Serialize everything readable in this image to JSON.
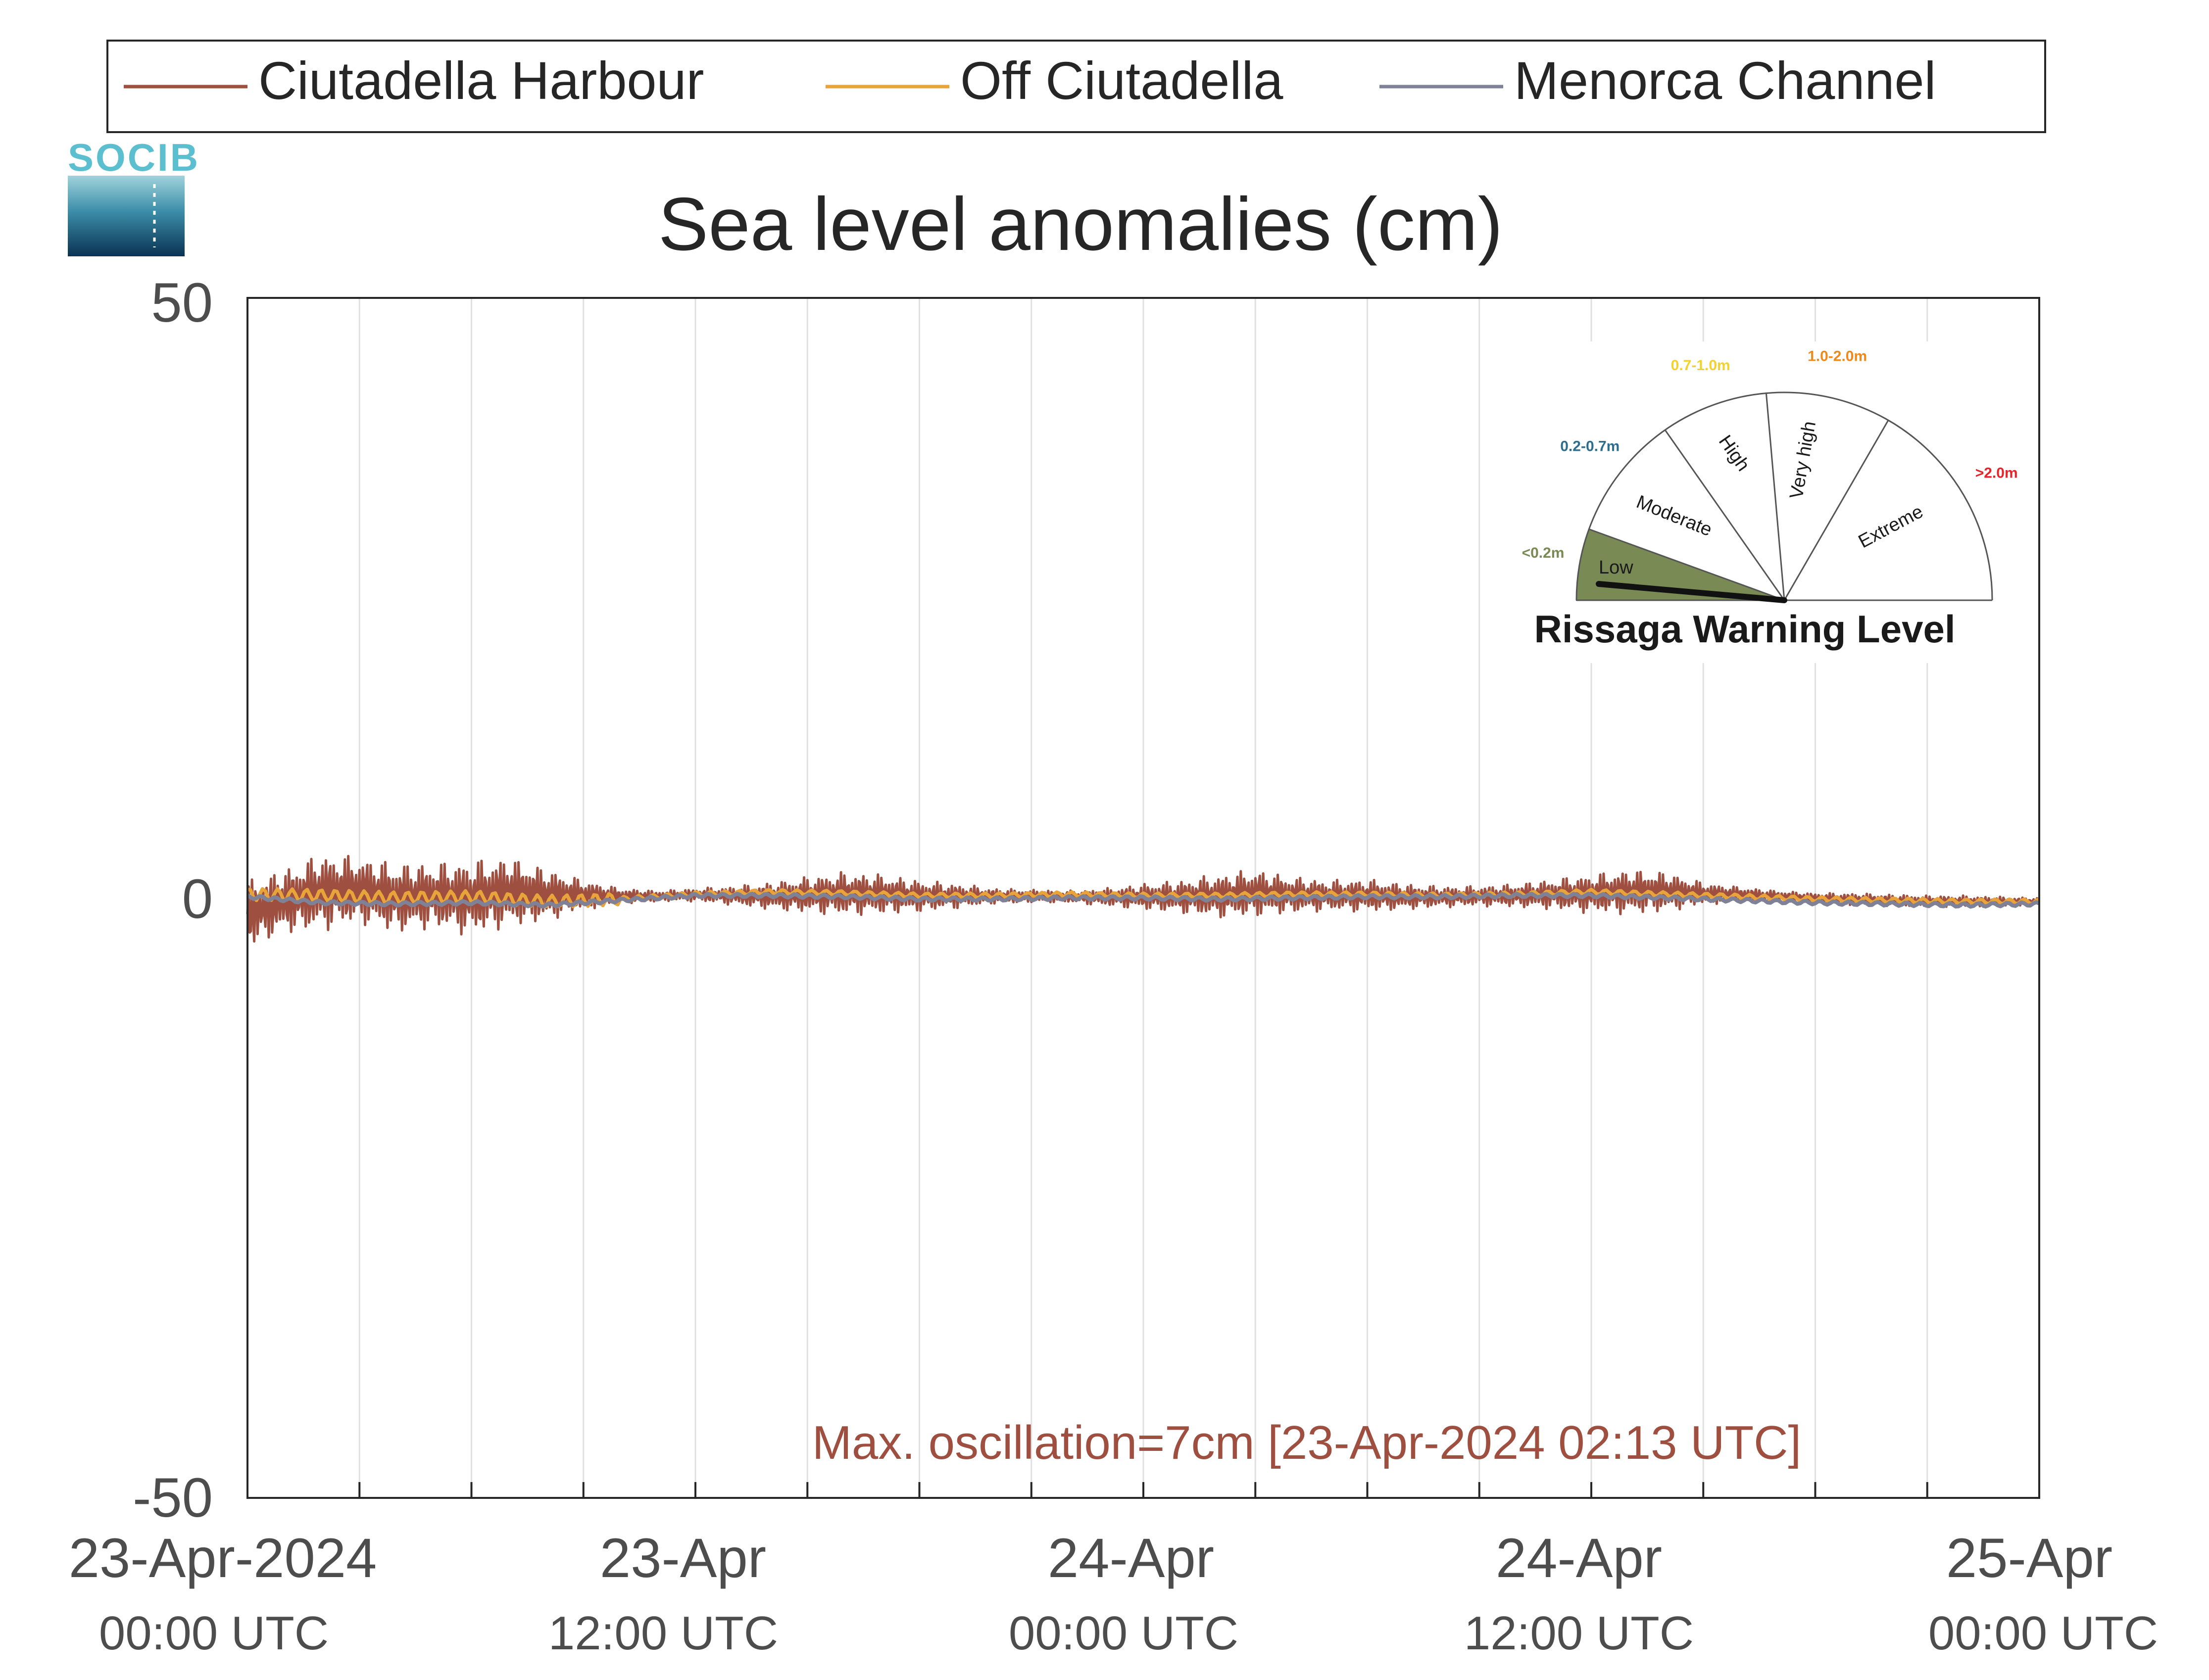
{
  "chart_data": {
    "type": "line",
    "title": "Sea level anomalies (cm)",
    "xlabel": "",
    "ylabel": "",
    "ylim": [
      -50,
      50
    ],
    "xlim": [
      "2024-04-23T00:00Z",
      "2024-04-25T00:00Z"
    ],
    "y_ticks": [
      "50",
      "0",
      "-50"
    ],
    "x_ticks": [
      {
        "line1": "23-Apr-2024",
        "line2": "00:00 UTC"
      },
      {
        "line1": "23-Apr",
        "line2": "12:00 UTC"
      },
      {
        "line1": "24-Apr",
        "line2": "00:00 UTC"
      },
      {
        "line1": "24-Apr",
        "line2": "12:00 UTC"
      },
      {
        "line1": "25-Apr",
        "line2": "00:00 UTC"
      }
    ],
    "grid": "vertical lines every 3 hours",
    "legend": "top, horizontal, outside plot area",
    "colors": {
      "harbour": "#9e4f3f",
      "off": "#e8a33a",
      "channel": "#7f8296",
      "axes": "#262626",
      "tick_text": "#4d4d4d",
      "grid": "#e0e0e0"
    },
    "series": [
      {
        "name": "Ciutadella Harbour",
        "color": "#9e4f3f",
        "x_hours": [
          0,
          1,
          2,
          3,
          4,
          5,
          6,
          7,
          8,
          9,
          10,
          11,
          12,
          13,
          14,
          15,
          16,
          17,
          18,
          19,
          20,
          21,
          22,
          23,
          24,
          25,
          26,
          27,
          28,
          29,
          30,
          31,
          32,
          33,
          34,
          35,
          36,
          37,
          38,
          39,
          40,
          41,
          42,
          43,
          44,
          45,
          46,
          47,
          48
        ],
        "y_max": [
          1.5,
          2.5,
          3.8,
          3.5,
          3.0,
          3.0,
          3.2,
          3.5,
          2.5,
          1.5,
          0.8,
          0.6,
          0.8,
          1.0,
          1.3,
          1.8,
          2.2,
          2.0,
          1.5,
          1.2,
          0.8,
          0.7,
          0.6,
          0.8,
          1.2,
          1.5,
          2.0,
          2.4,
          1.8,
          1.5,
          1.6,
          1.2,
          1.0,
          1.0,
          1.2,
          1.6,
          2.0,
          2.4,
          2.2,
          1.3,
          0.9,
          0.6,
          0.4,
          0.4,
          0.3,
          0.2,
          0.2,
          0.1,
          0.0
        ],
        "y_min": [
          -4.2,
          -3.0,
          -2.8,
          -2.2,
          -3.0,
          -2.6,
          -3.2,
          -2.5,
          -2.0,
          -1.0,
          -0.5,
          -0.3,
          -0.3,
          -0.6,
          -1.0,
          -1.3,
          -1.5,
          -1.4,
          -1.2,
          -0.9,
          -0.5,
          -0.4,
          -0.4,
          -0.7,
          -1.0,
          -1.3,
          -1.7,
          -1.6,
          -1.3,
          -1.1,
          -1.2,
          -1.0,
          -0.8,
          -0.7,
          -0.8,
          -1.0,
          -1.3,
          -1.4,
          -1.2,
          -0.6,
          -0.3,
          -0.3,
          -0.4,
          -0.6,
          -0.7,
          -0.7,
          -0.8,
          -0.7,
          -0.6
        ]
      },
      {
        "name": "Off Ciutadella",
        "color": "#e8a33a",
        "x_hours": [
          0,
          2,
          4,
          6,
          8,
          10,
          12,
          14,
          16,
          18,
          20,
          22,
          24,
          26,
          28,
          30,
          32,
          34,
          36,
          38,
          40,
          42,
          44,
          46,
          48
        ],
        "y": [
          0.3,
          0.2,
          0.0,
          0.1,
          -0.3,
          -0.1,
          0.3,
          0.5,
          0.4,
          0.2,
          0.2,
          0.3,
          0.2,
          0.2,
          0.3,
          0.3,
          0.2,
          0.3,
          0.5,
          0.3,
          0.1,
          -0.1,
          -0.2,
          -0.3,
          -0.3
        ]
      },
      {
        "name": "Menorca Channel",
        "color": "#7f8296",
        "x_hours": [
          0,
          2,
          4,
          6,
          8,
          10,
          12,
          14,
          16,
          18,
          20,
          22,
          24,
          26,
          28,
          30,
          32,
          34,
          36,
          38,
          40,
          42,
          44,
          46,
          48
        ],
        "y": [
          0.1,
          -0.4,
          -0.5,
          -0.4,
          -0.6,
          -0.2,
          0.2,
          0.2,
          0.1,
          -0.1,
          -0.1,
          0.0,
          0.0,
          -0.1,
          0.0,
          0.1,
          0.1,
          0.2,
          0.2,
          0.0,
          -0.2,
          -0.4,
          -0.5,
          -0.6,
          -0.5
        ]
      }
    ],
    "annotation": "Max. oscillation=7cm [23-Apr-2024 02:13 UTC]"
  },
  "logo": {
    "text": "SOCIB"
  },
  "gauge": {
    "title": "Rissaga Warning Level",
    "level": "Low",
    "sectors": [
      {
        "label": "Low",
        "range": "<0.2m",
        "color": "#7a8a55"
      },
      {
        "label": "Moderate",
        "range": "0.2-0.7m",
        "color": "#2d6e8e"
      },
      {
        "label": "High",
        "range": "0.7-1.0m",
        "color": "#f2d22e"
      },
      {
        "label": "Very high",
        "range": "1.0-2.0m",
        "color": "#ee8a1c"
      },
      {
        "label": "Extreme",
        "range": ">2.0m",
        "color": "#e3262b"
      }
    ]
  }
}
